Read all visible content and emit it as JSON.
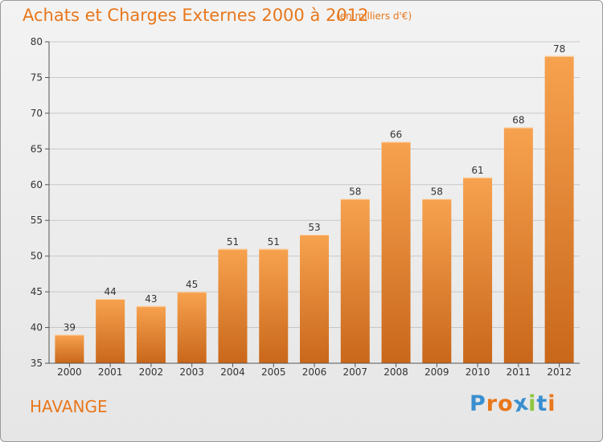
{
  "header": {
    "title": "Achats et Charges Externes 2000 à 2012",
    "subtitle": "(en milliers d'€)"
  },
  "footer": {
    "place": "HAVANGE",
    "logo_letters": [
      "P",
      "r",
      "o",
      "x",
      "i",
      "t",
      "i"
    ],
    "logo_colors": [
      "#3a8fd0",
      "#e8771b",
      "#e8771b",
      "#3a8fd0",
      "#8cc63f",
      "#3a8fd0",
      "#e8771b"
    ]
  },
  "colors": {
    "bar_top": "#f7a24f",
    "bar_bottom": "#c9671a",
    "accent": "#e8771b",
    "grid": "#c8c8c8",
    "axis": "#555555"
  },
  "chart_data": {
    "type": "bar",
    "categories": [
      "2000",
      "2001",
      "2002",
      "2003",
      "2004",
      "2005",
      "2006",
      "2007",
      "2008",
      "2009",
      "2010",
      "2011",
      "2012"
    ],
    "values": [
      39,
      44,
      43,
      45,
      51,
      51,
      53,
      58,
      66,
      58,
      61,
      68,
      78
    ],
    "title": "Achats et Charges Externes 2000 à 2012",
    "subtitle": "(en milliers d'€)",
    "xlabel": "",
    "ylabel": "",
    "ylim": [
      35,
      80
    ],
    "yticks": [
      35,
      40,
      45,
      50,
      55,
      60,
      65,
      70,
      75,
      80
    ],
    "grid": true,
    "data_labels": true
  }
}
